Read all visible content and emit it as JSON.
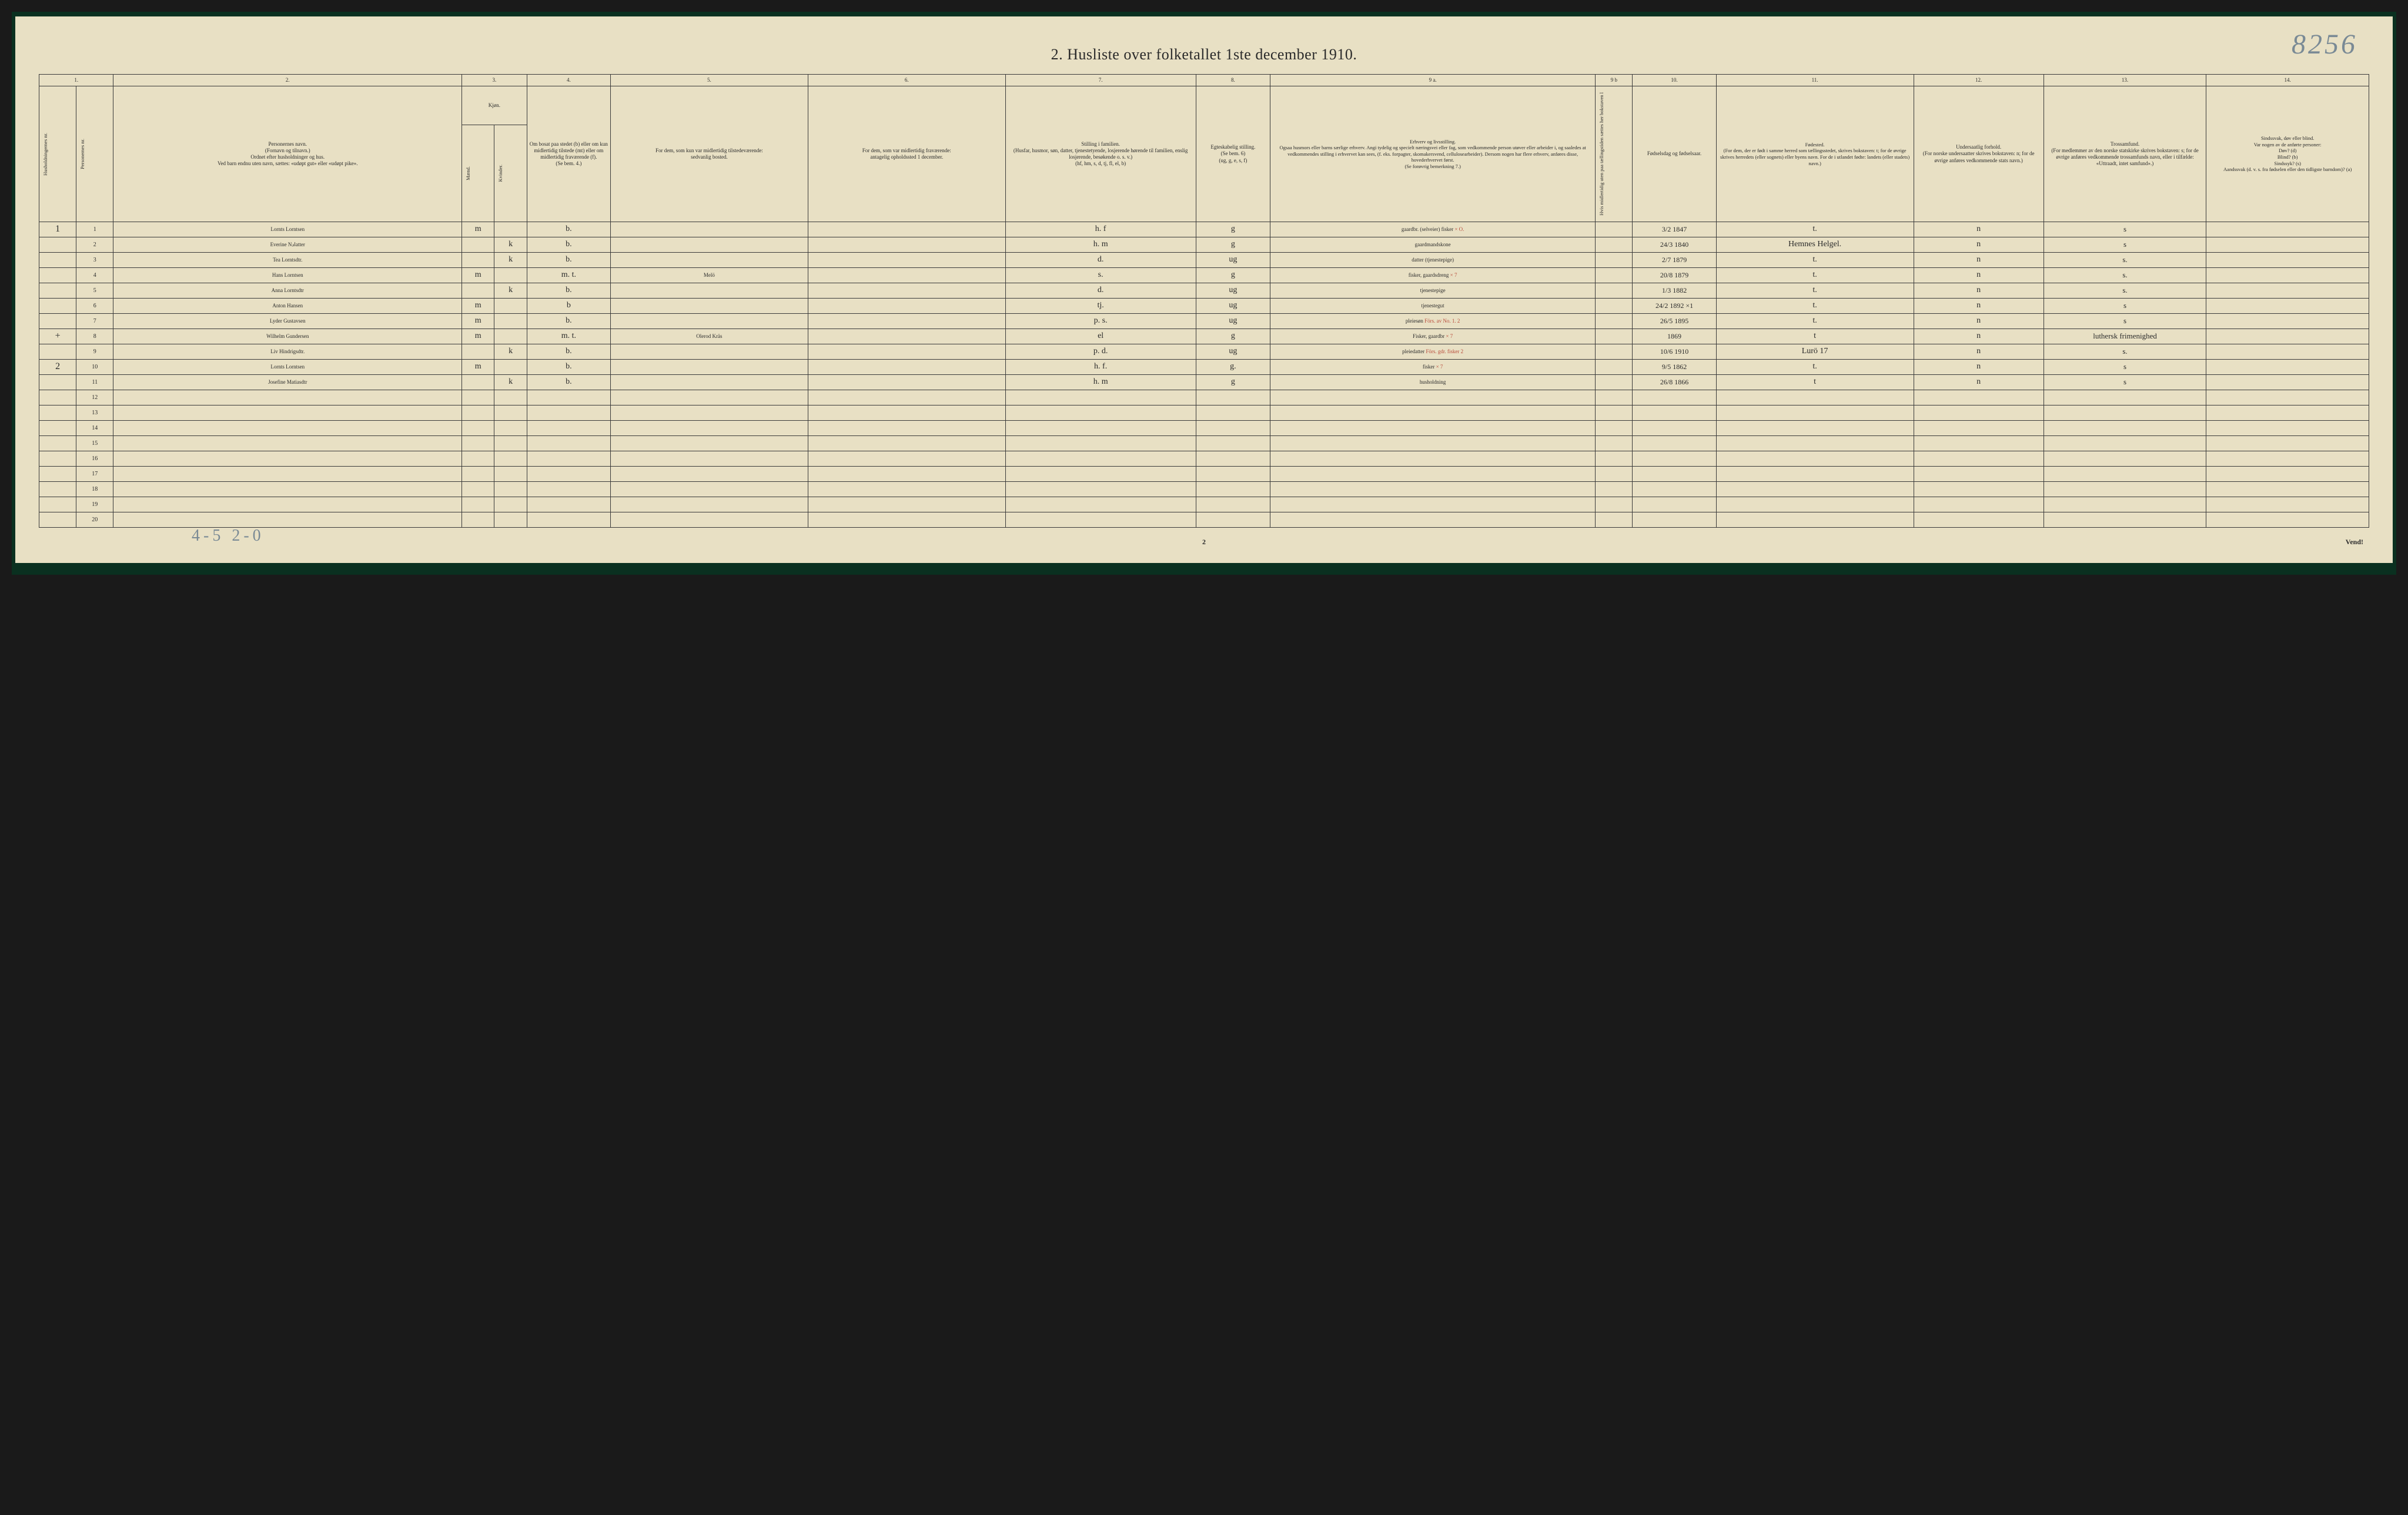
{
  "pencil_top": "8256",
  "title": "2.  Husliste over folketallet 1ste december 1910.",
  "bottom_pencil": "4-5 2-0",
  "foot_page_num": "2",
  "vend": "Vend!",
  "col_nums": [
    "1.",
    "2.",
    "3.",
    "4.",
    "5.",
    "6.",
    "7.",
    "8.",
    "9 a.",
    "9 b",
    "10.",
    "11.",
    "12.",
    "13.",
    "14."
  ],
  "headers": {
    "h1a": "Husholdningernes nr.",
    "h1b": "Personernes nr.",
    "h2": "Personernes navn.\n(Fornavn og tilnavn.)\nOrdnet efter husholdninger og hus.\nVed barn endnu uten navn, sættes: «udøpt gut» eller «udøpt pike».",
    "h3": "Kjøn.",
    "h3a": "Mænd.",
    "h3b": "Kvinder.",
    "h3foot": "m.  k.",
    "h4": "Om bosat paa stedet (b) eller om kun midlertidig tilstede (mt) eller om midlertidig fraværende (f).\n(Se bem. 4.)",
    "h5": "For dem, som kun var midlertidig tilstedeværende:\nsedvanlig bosted.",
    "h6": "For dem, som var midlertidig fraværende:\nantagelig opholdssted 1 december.",
    "h7": "Stilling i familien.\n(Husfar, husmor, søn, datter, tjenestetyende, losjerende hørende til familien, enslig losjerende, besøkende o. s. v.)\n(hf, hm, s, d, tj, fl, el, b)",
    "h8": "Egteskabelig stilling.\n(Se bem. 6)\n(ug, g, e, s, f)",
    "h9a": "Erhverv og livsstilling.\nOgsaa husmors eller barns særlige erhverv. Angi tydelig og specielt næringsvei eller fag, som vedkommende person utøver eller arbeider i, og saaledes at vedkommendes stilling i erhvervet kan sees, (f. eks. forpagter, skomakersvend, cellulosearbeider). Dersom nogen har flere erhverv, anføres disse, hovederhvervet først.\n(Se forøvrig bemerkning 7.)",
    "h9b": "Hvis midlertidig uten paa tællingstiden sættes her bokstaven  l",
    "h10": "Fødselsdag og fødselsaar.",
    "h11": "Fødested.\n(For dem, der er født i samme herred som tællingsstedet, skrives bokstaven: t; for de øvrige skrives herredets (eller sognets) eller byens navn. For de i utlandet fødte: landets (eller stadets) navn.)",
    "h12": "Undersaatlig forhold.\n(For norske undersaatter skrives bokstaven: n; for de øvrige anføres vedkommende stats navn.)",
    "h13": "Trossamfund.\n(For medlemmer av den norske statskirke skrives bokstaven: s; for de øvrige anføres vedkommende trossamfunds navn, eller i tilfælde: «Uttraadt, intet samfund».)",
    "h14": "Sindssvak, døv eller blind.\nVar nogen av de anførte personer:\nDøv? (d)\nBlind? (b)\nSindssyk? (s)\nAandssvak (d. v. s. fra fødselen eller den tidligste barndom)? (a)"
  },
  "rows": [
    {
      "hh": "1",
      "n": "1",
      "name": "Lornts Lorntsen",
      "m": "m",
      "k": "",
      "res": "b.",
      "usual": "",
      "away": "",
      "fam": "h. f",
      "mar": "g",
      "occ": "gaardbr. (selveier) fisker",
      "occ_red": "× O.",
      "l": "",
      "birth": "3/2 1847",
      "place": "t.",
      "nat": "n",
      "rel": "s",
      "dis": ""
    },
    {
      "hh": "",
      "n": "2",
      "name": "Everine Nادatter",
      "m": "",
      "k": "k",
      "res": "b.",
      "usual": "",
      "away": "",
      "fam": "h. m",
      "mar": "g",
      "occ": "gaardmandskone",
      "occ_red": "",
      "l": "",
      "birth": "24/3 1840",
      "place": "Hemnes Helgel.",
      "nat": "n",
      "rel": "s",
      "dis": ""
    },
    {
      "hh": "",
      "n": "3",
      "name": "Tea Lorntsdtr.",
      "m": "",
      "k": "k",
      "res": "b.",
      "usual": "",
      "away": "",
      "fam": "d.",
      "mar": "ug",
      "occ": "datter (tjenestepige)",
      "occ_red": "",
      "l": "",
      "birth": "2/7 1879",
      "place": "t.",
      "nat": "n",
      "rel": "s.",
      "dis": ""
    },
    {
      "hh": "",
      "n": "4",
      "name": "Hans Lorntsen",
      "m": "m",
      "k": "",
      "res": "m. t.",
      "usual": "Melö",
      "away": "",
      "fam": "s.",
      "mar": "g",
      "occ": "fisker, gaardsdreng",
      "occ_red": "× 7",
      "l": "",
      "birth": "20/8 1879",
      "place": "t.",
      "nat": "n",
      "rel": "s.",
      "dis": ""
    },
    {
      "hh": "",
      "n": "5",
      "name": "Anna Lorntsdtr",
      "m": "",
      "k": "k",
      "res": "b.",
      "usual": "",
      "away": "",
      "fam": "d.",
      "mar": "ug",
      "occ": "tjenestepige",
      "occ_red": "",
      "l": "",
      "birth": "1/3 1882",
      "place": "t.",
      "nat": "n",
      "rel": "s.",
      "dis": ""
    },
    {
      "hh": "",
      "n": "6",
      "name": "Anton Hansen",
      "m": "m",
      "k": "",
      "res": "b",
      "usual": "",
      "away": "",
      "fam": "tj.",
      "mar": "ug",
      "occ": "tjenestegut",
      "occ_red": "",
      "l": "",
      "birth": "24/2 1892 ×1",
      "place": "t.",
      "nat": "n",
      "rel": "s",
      "dis": ""
    },
    {
      "hh": "",
      "n": "7",
      "name": "Lyder Gustavsen",
      "m": "m",
      "k": "",
      "res": "b.",
      "usual": "",
      "away": "",
      "fam": "p. s.",
      "mar": "ug",
      "occ": "pleiesøn",
      "occ_red": "Förs. av No. 1.  2",
      "l": "",
      "birth": "26/5 1895",
      "place": "t.",
      "nat": "n",
      "rel": "s",
      "dis": ""
    },
    {
      "hh": "+",
      "n": "8",
      "name": "Wilhelm Gundersen",
      "m": "m",
      "k": "",
      "res": "m. t.",
      "usual": "Olerod Kräs",
      "away": "",
      "fam": "el",
      "mar": "g",
      "occ": "Fisker, gaardbr",
      "occ_red": "× 7",
      "l": "",
      "birth": "1869",
      "place": "t",
      "nat": "n",
      "rel": "luthersk frimenighed",
      "dis": ""
    },
    {
      "hh": "",
      "n": "9",
      "name": "Liv Hindrigsdtr.",
      "m": "",
      "k": "k",
      "res": "b.",
      "usual": "",
      "away": "",
      "fam": "p. d.",
      "mar": "ug",
      "occ": "pleiedatter",
      "occ_red": "Förs. gdr. fisker   2",
      "l": "",
      "birth": "10/6 1910",
      "place": "Lurö 17",
      "nat": "n",
      "rel": "s.",
      "dis": ""
    },
    {
      "hh": "2",
      "n": "10",
      "name": "Lornts Lorntsen",
      "m": "m",
      "k": "",
      "res": "b.",
      "usual": "",
      "away": "",
      "fam": "h. f.",
      "mar": "g.",
      "occ": "fisker",
      "occ_red": "× 7",
      "l": "",
      "birth": "9/5 1862",
      "place": "t.",
      "nat": "n",
      "rel": "s",
      "dis": ""
    },
    {
      "hh": "",
      "n": "11",
      "name": "Josefine Matiasdtr",
      "m": "",
      "k": "k",
      "res": "b.",
      "usual": "",
      "away": "",
      "fam": "h. m",
      "mar": "g",
      "occ": "husholdning",
      "occ_red": "",
      "l": "",
      "birth": "26/8 1866",
      "place": "t",
      "nat": "n",
      "rel": "s",
      "dis": ""
    }
  ],
  "empty_rows": [
    12,
    13,
    14,
    15,
    16,
    17,
    18,
    19,
    20
  ],
  "colors": {
    "paper": "#e8e0c4",
    "border": "#3a3a3a",
    "frame": "#0a3020",
    "ink": "#3a3a40",
    "red": "#b84a3a",
    "pencil": "#7a8a95"
  }
}
